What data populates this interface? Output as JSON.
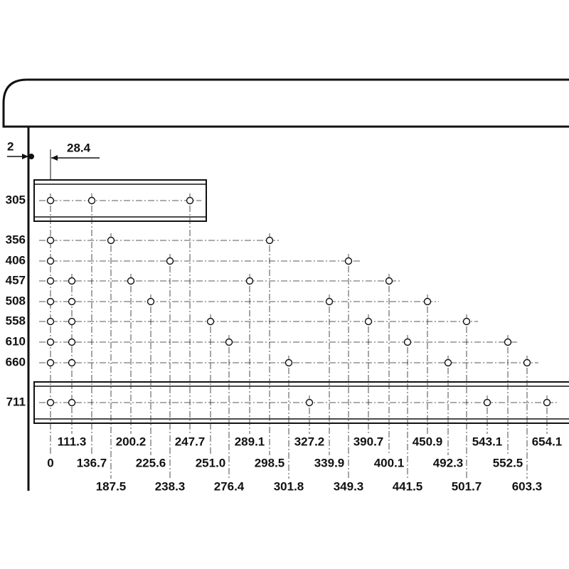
{
  "dimensions": {
    "edge_offset": "2",
    "first_hole": "28.4"
  },
  "rows": [
    "305",
    "356",
    "406",
    "457",
    "508",
    "558",
    "610",
    "660",
    "711"
  ],
  "columns": [
    "0",
    "111.3",
    "136.7",
    "187.5",
    "200.2",
    "225.6",
    "238.3",
    "247.7",
    "251.0",
    "276.4",
    "289.1",
    "298.5",
    "301.8",
    "327.2",
    "339.9",
    "349.3",
    "390.7",
    "400.1",
    "441.5",
    "450.9",
    "492.3",
    "501.7",
    "543.1",
    "552.5",
    "603.3",
    "654.1"
  ]
}
